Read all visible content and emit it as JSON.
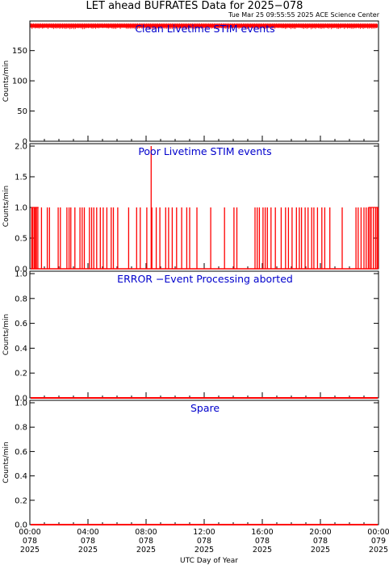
{
  "page": {
    "title": "LET ahead BUFRATES Data for 2025−078",
    "timestamp": "Tue Mar 25 09:55:55 2025 ACE Science Center",
    "xlabel": "UTC Day of Year",
    "colors": {
      "data": "#ff0000",
      "panel_title": "#0000cc",
      "axes": "#000000"
    }
  },
  "chart_data": [
    {
      "type": "line",
      "title": "Clean Livetime STIM events",
      "ylabel": "Counts/min",
      "ylim": [
        0,
        195
      ],
      "yticks": [
        "0",
        "50",
        "100",
        "150"
      ],
      "xlim_hours": [
        0,
        24
      ],
      "series": [
        {
          "band": [
            188,
            194
          ],
          "mean": 191
        }
      ]
    },
    {
      "type": "line",
      "title": "Poor Livetime STIM events",
      "ylabel": "Counts/min",
      "ylim": [
        0,
        2
      ],
      "yticks": [
        "0.0",
        "0.5",
        "1.0",
        "1.5",
        "2.0"
      ],
      "xlim_hours": [
        0,
        24
      ],
      "series": [
        {
          "ones_at_hours": [
            0.12,
            0.2,
            0.3,
            0.38,
            0.45,
            0.55,
            0.8,
            1.2,
            1.35,
            1.95,
            2.1,
            2.55,
            2.7,
            2.82,
            3.1,
            3.45,
            3.6,
            3.75,
            4.1,
            4.25,
            4.4,
            4.6,
            4.85,
            5.05,
            5.3,
            5.6,
            5.75,
            6.05,
            6.8,
            7.35,
            7.6,
            8.05,
            8.4,
            8.7,
            8.95,
            9.35,
            9.55,
            9.8,
            10.1,
            10.45,
            10.8,
            11.0,
            11.5,
            12.45,
            13.4,
            14.05,
            14.25,
            15.5,
            15.65,
            15.8,
            16.05,
            16.2,
            16.35,
            16.6,
            16.9,
            17.3,
            17.6,
            17.8,
            18.05,
            18.35,
            18.55,
            18.7,
            18.95,
            19.15,
            19.4,
            19.55,
            19.8,
            20.1,
            20.3,
            20.65,
            21.5,
            22.45,
            22.6,
            22.8,
            23.0,
            23.15,
            23.3,
            23.4,
            23.5,
            23.65,
            23.8,
            23.9,
            23.97
          ],
          "twos_at_hours": [
            8.35
          ]
        }
      ]
    },
    {
      "type": "line",
      "title": "ERROR −Event Processing aborted",
      "ylabel": "Counts/min",
      "ylim": [
        0,
        1
      ],
      "yticks": [
        "0.0",
        "0.2",
        "0.4",
        "0.6",
        "0.8",
        "1.0"
      ],
      "xlim_hours": [
        0,
        24
      ],
      "series": [
        {
          "constant": 0
        }
      ]
    },
    {
      "type": "line",
      "title": "Spare",
      "ylabel": "Counts/min",
      "ylim": [
        0,
        1
      ],
      "yticks": [
        "0.0",
        "0.2",
        "0.4",
        "0.6",
        "0.8",
        "1.0"
      ],
      "xlim_hours": [
        0,
        24
      ],
      "series": [
        {
          "constant": 0
        }
      ]
    }
  ],
  "xaxis": {
    "ticks": [
      {
        "hour": 0,
        "time": "00:00",
        "doy": "078",
        "year": "2025"
      },
      {
        "hour": 4,
        "time": "04:00",
        "doy": "078",
        "year": "2025"
      },
      {
        "hour": 8,
        "time": "08:00",
        "doy": "078",
        "year": "2025"
      },
      {
        "hour": 12,
        "time": "12:00",
        "doy": "078",
        "year": "2025"
      },
      {
        "hour": 16,
        "time": "16:00",
        "doy": "078",
        "year": "2025"
      },
      {
        "hour": 20,
        "time": "20:00",
        "doy": "078",
        "year": "2025"
      },
      {
        "hour": 24,
        "time": "00:00",
        "doy": "079",
        "year": "2025"
      }
    ]
  }
}
